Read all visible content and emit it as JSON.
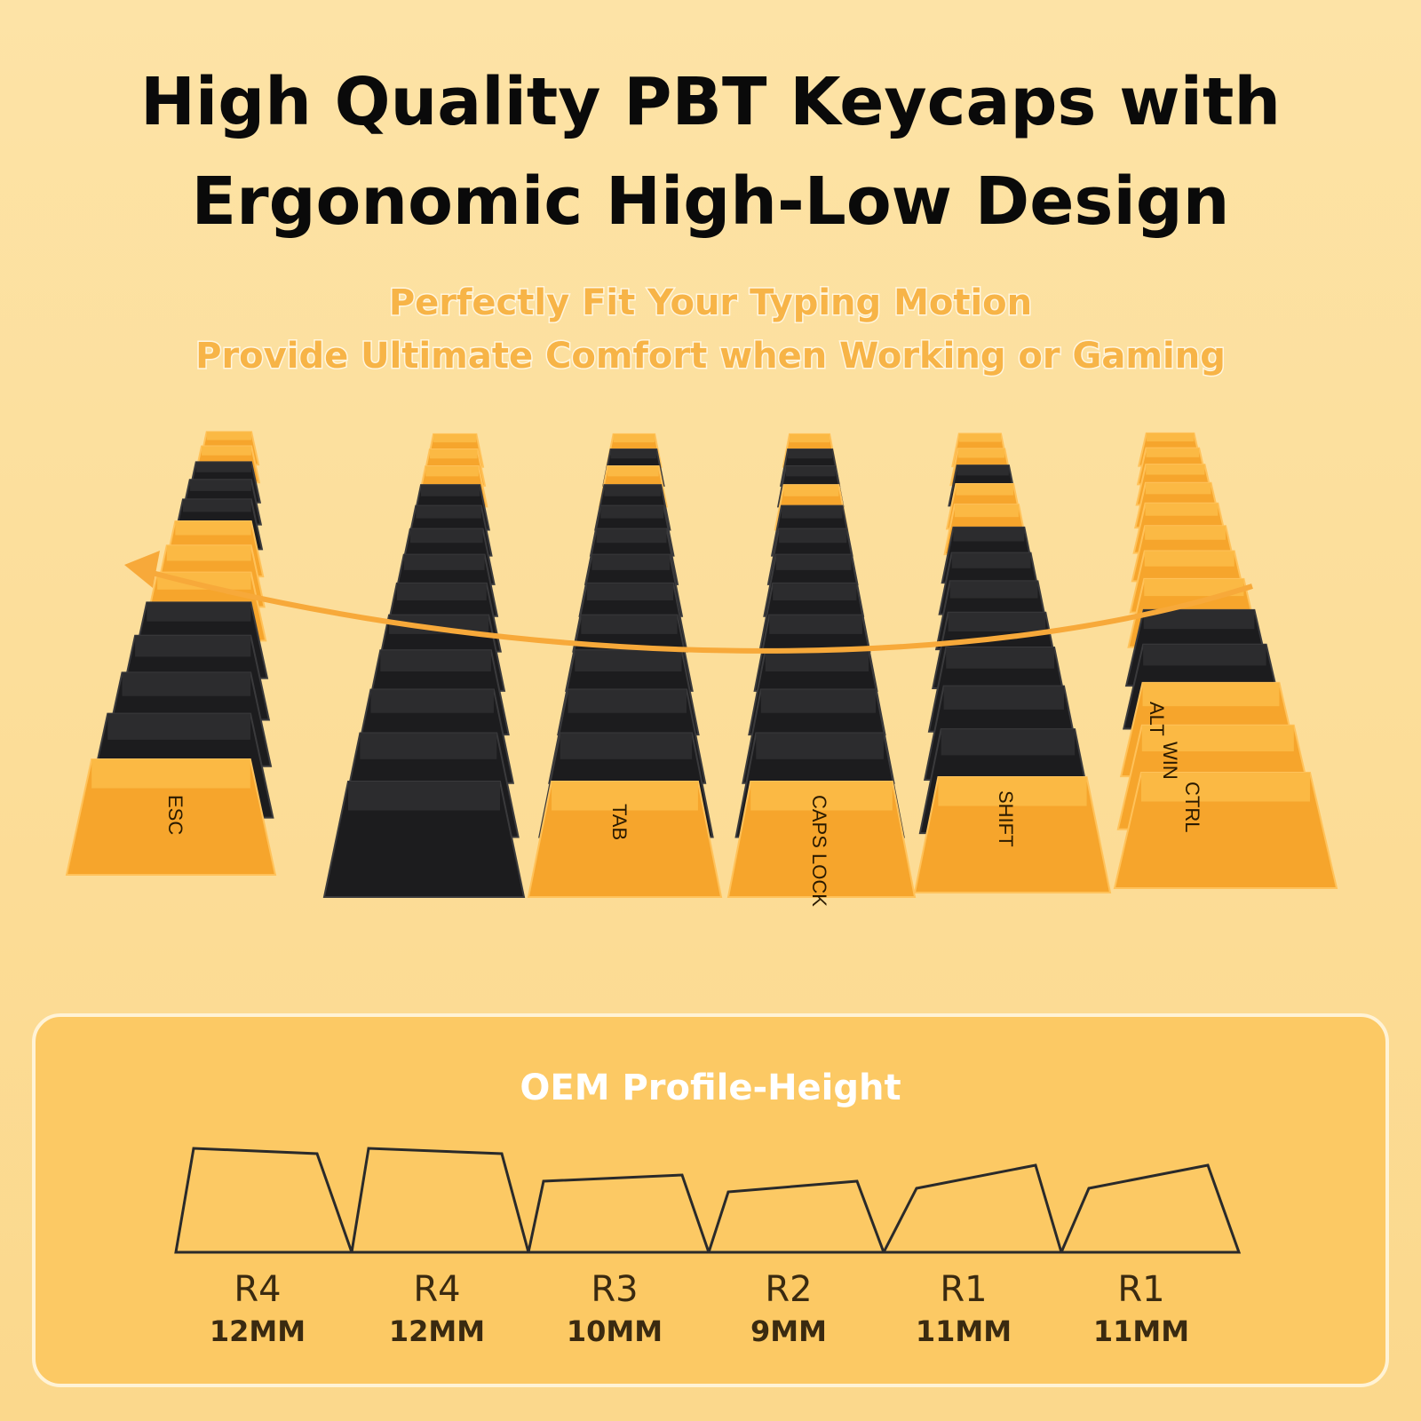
{
  "header": {
    "title": [
      "High Quality PBT Keycaps with",
      "Ergonomic High-Low Design"
    ],
    "subtitle": [
      "Perfectly Fit Your Typing Motion",
      "Provide Ultimate Comfort when Working or Gaming"
    ]
  },
  "keyboard": {
    "legends": [
      "ESC",
      "TAB",
      "CAPS LOCK",
      "SHIFT",
      "CTRL",
      "WIN",
      "ALT"
    ]
  },
  "profile": {
    "title": "OEM Profile-Height",
    "items": [
      {
        "row": "R4",
        "height": "12MM"
      },
      {
        "row": "R4",
        "height": "12MM"
      },
      {
        "row": "R3",
        "height": "10MM"
      },
      {
        "row": "R2",
        "height": "9MM"
      },
      {
        "row": "R1",
        "height": "11MM"
      },
      {
        "row": "R1",
        "height": "11MM"
      }
    ]
  }
}
